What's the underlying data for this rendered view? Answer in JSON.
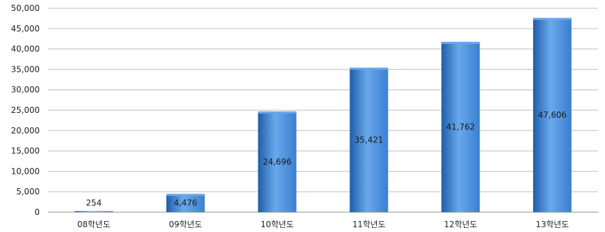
{
  "chart_data": {
    "type": "bar",
    "title": "",
    "xlabel": "",
    "ylabel": "",
    "categories": [
      "08학년도",
      "09학년도",
      "10학년도",
      "11학년도",
      "12학년도",
      "13학년도"
    ],
    "values": [
      254,
      4476,
      24696,
      35421,
      41762,
      47606
    ],
    "data_labels": [
      "254",
      "4,476",
      "24,696",
      "35,421",
      "41,762",
      "47,606"
    ],
    "ylim": [
      0,
      50000
    ],
    "yticks": [
      0,
      5000,
      10000,
      15000,
      20000,
      25000,
      30000,
      35000,
      40000,
      45000,
      50000
    ],
    "ytick_labels": [
      "0",
      "5,000",
      "10,000",
      "15,000",
      "20,000",
      "25,000",
      "30,000",
      "35,000",
      "40,000",
      "45,000",
      "50,000"
    ],
    "grid": true,
    "legend": "none",
    "bar_color": "#3a7fd0",
    "bar_color_light": "#6aa8ec",
    "bar_color_dark": "#1f5ea8"
  }
}
